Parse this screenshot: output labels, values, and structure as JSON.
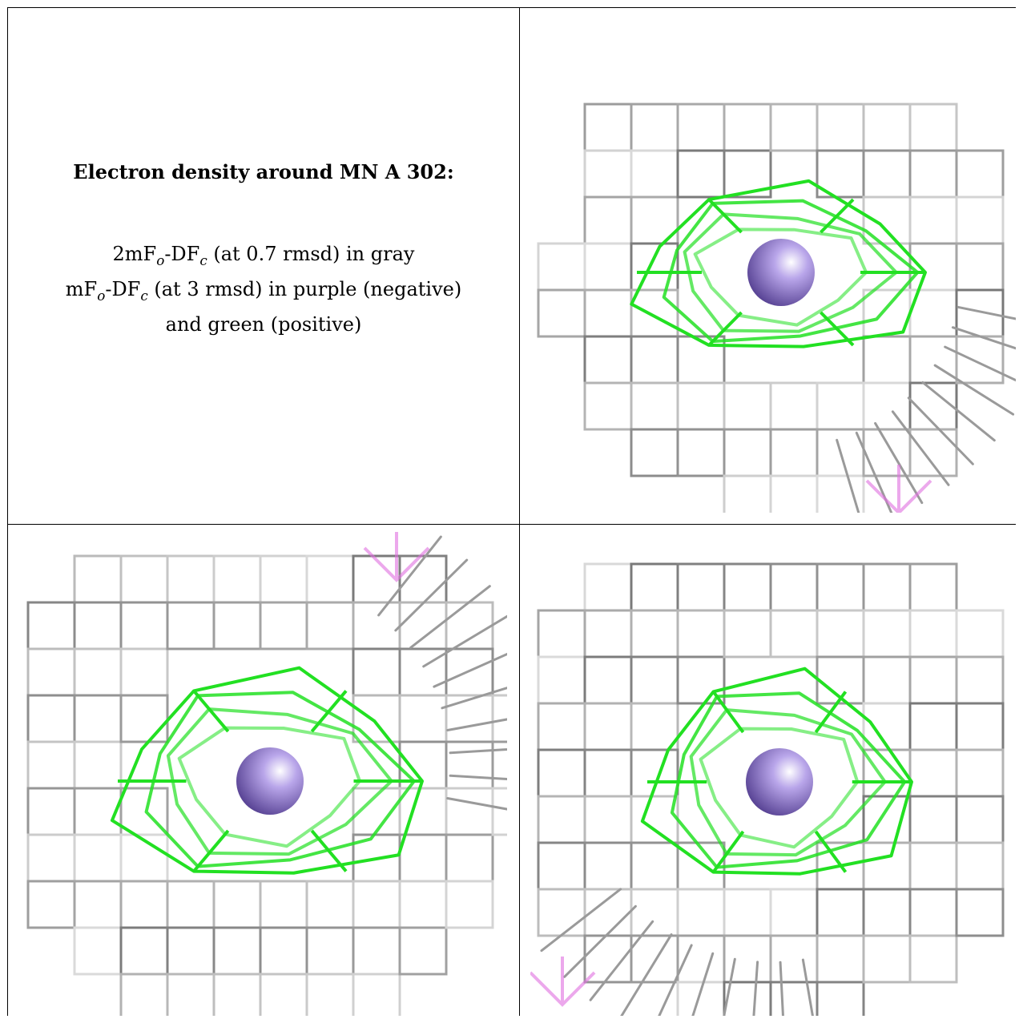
{
  "legend": {
    "title": "Electron density around MN A 302:",
    "lines": [
      {
        "pre": "2mF",
        "s1": "o",
        "mid": "-DF",
        "s2": "c",
        "post": " (at 0.7 rmsd) in gray"
      },
      {
        "pre": "mF",
        "s1": "o",
        "mid": "-DF",
        "s2": "c",
        "post": " (at 3 rmsd) in purple (negative)"
      },
      {
        "pre": "",
        "s1": "",
        "mid": "",
        "s2": "",
        "post": "and green (positive)"
      }
    ]
  },
  "colors": {
    "mesh_gray": "#8c8c8c",
    "mesh_green": "#22e022",
    "atom_purple": "#8a6ec9",
    "mesh_purple": "#e070e0"
  },
  "views": [
    {
      "id": "view-top-right",
      "atom": "MN A 302"
    },
    {
      "id": "view-bottom-left",
      "atom": "MN A 302"
    },
    {
      "id": "view-bottom-right",
      "atom": "MN A 302"
    }
  ]
}
